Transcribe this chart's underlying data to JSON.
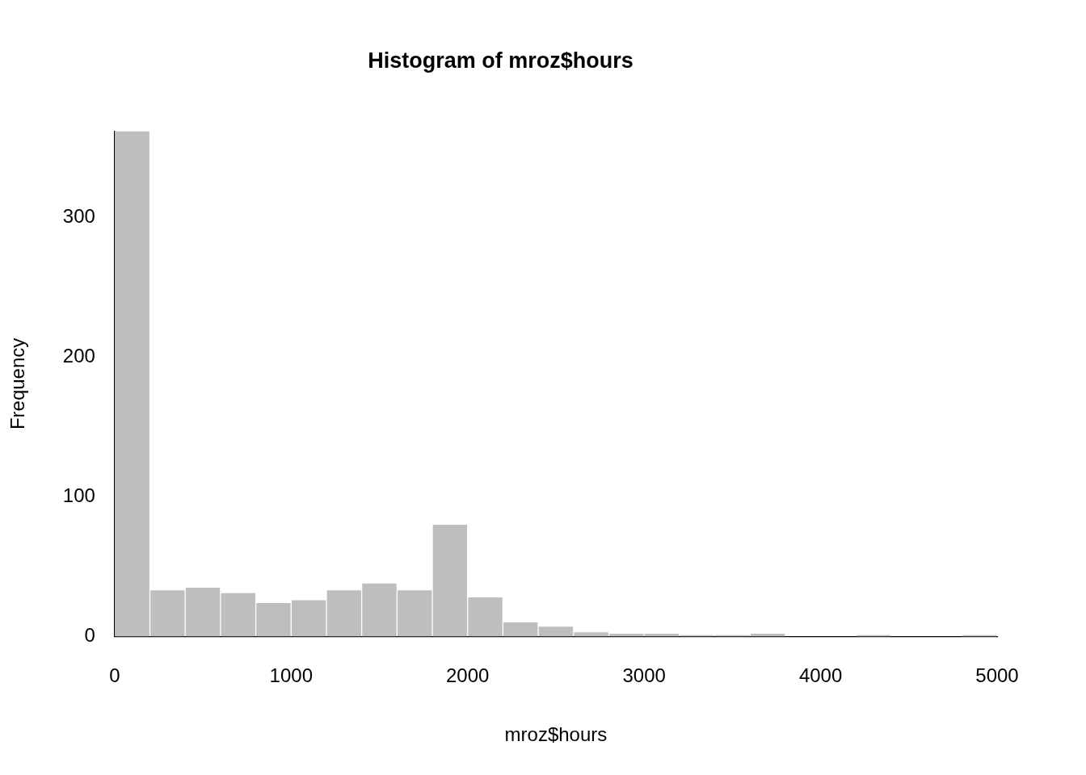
{
  "chart_data": {
    "type": "histogram",
    "title": "Histogram of mroz$hours",
    "xlabel": "mroz$hours",
    "ylabel": "Frequency",
    "bins": [
      0,
      200,
      400,
      600,
      800,
      1000,
      1200,
      1400,
      1600,
      1800,
      2000,
      2200,
      2400,
      2600,
      2800,
      3000,
      3200,
      3400,
      3600,
      3800,
      4000,
      4200,
      4400,
      4600,
      4800,
      5000
    ],
    "values": [
      362,
      33,
      35,
      31,
      24,
      26,
      33,
      38,
      33,
      80,
      28,
      10,
      7,
      3,
      2,
      2,
      1,
      1,
      2,
      0,
      0,
      1,
      0,
      0,
      1
    ],
    "color": "#bebebe",
    "xlim": [
      0,
      5000
    ],
    "xticks": [
      0,
      1000,
      2000,
      3000,
      4000,
      5000
    ],
    "ylim": [
      0,
      362
    ],
    "yticks": [
      0,
      100,
      200,
      300
    ],
    "grid": false,
    "legend": false
  }
}
